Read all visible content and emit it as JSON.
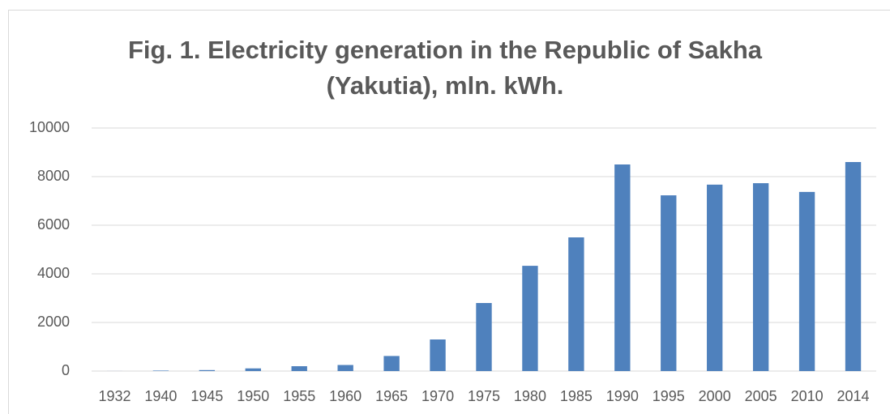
{
  "chart_data": {
    "type": "bar",
    "title": "Fig. 1. Electricity generation in the Republic of Sakha (Yakutia), mln. kWh.",
    "categories": [
      "1932",
      "1940",
      "1945",
      "1950",
      "1955",
      "1960",
      "1965",
      "1970",
      "1975",
      "1980",
      "1985",
      "1990",
      "1995",
      "2000",
      "2005",
      "2010",
      "2014"
    ],
    "values": [
      2,
      20,
      40,
      110,
      200,
      250,
      620,
      1300,
      2800,
      4330,
      5500,
      8500,
      7230,
      7670,
      7730,
      7370,
      8600
    ],
    "color": "#4f81bd",
    "ylim": [
      0,
      10000
    ],
    "yticks": [
      0,
      2000,
      4000,
      6000,
      8000,
      10000
    ],
    "grid": true
  }
}
